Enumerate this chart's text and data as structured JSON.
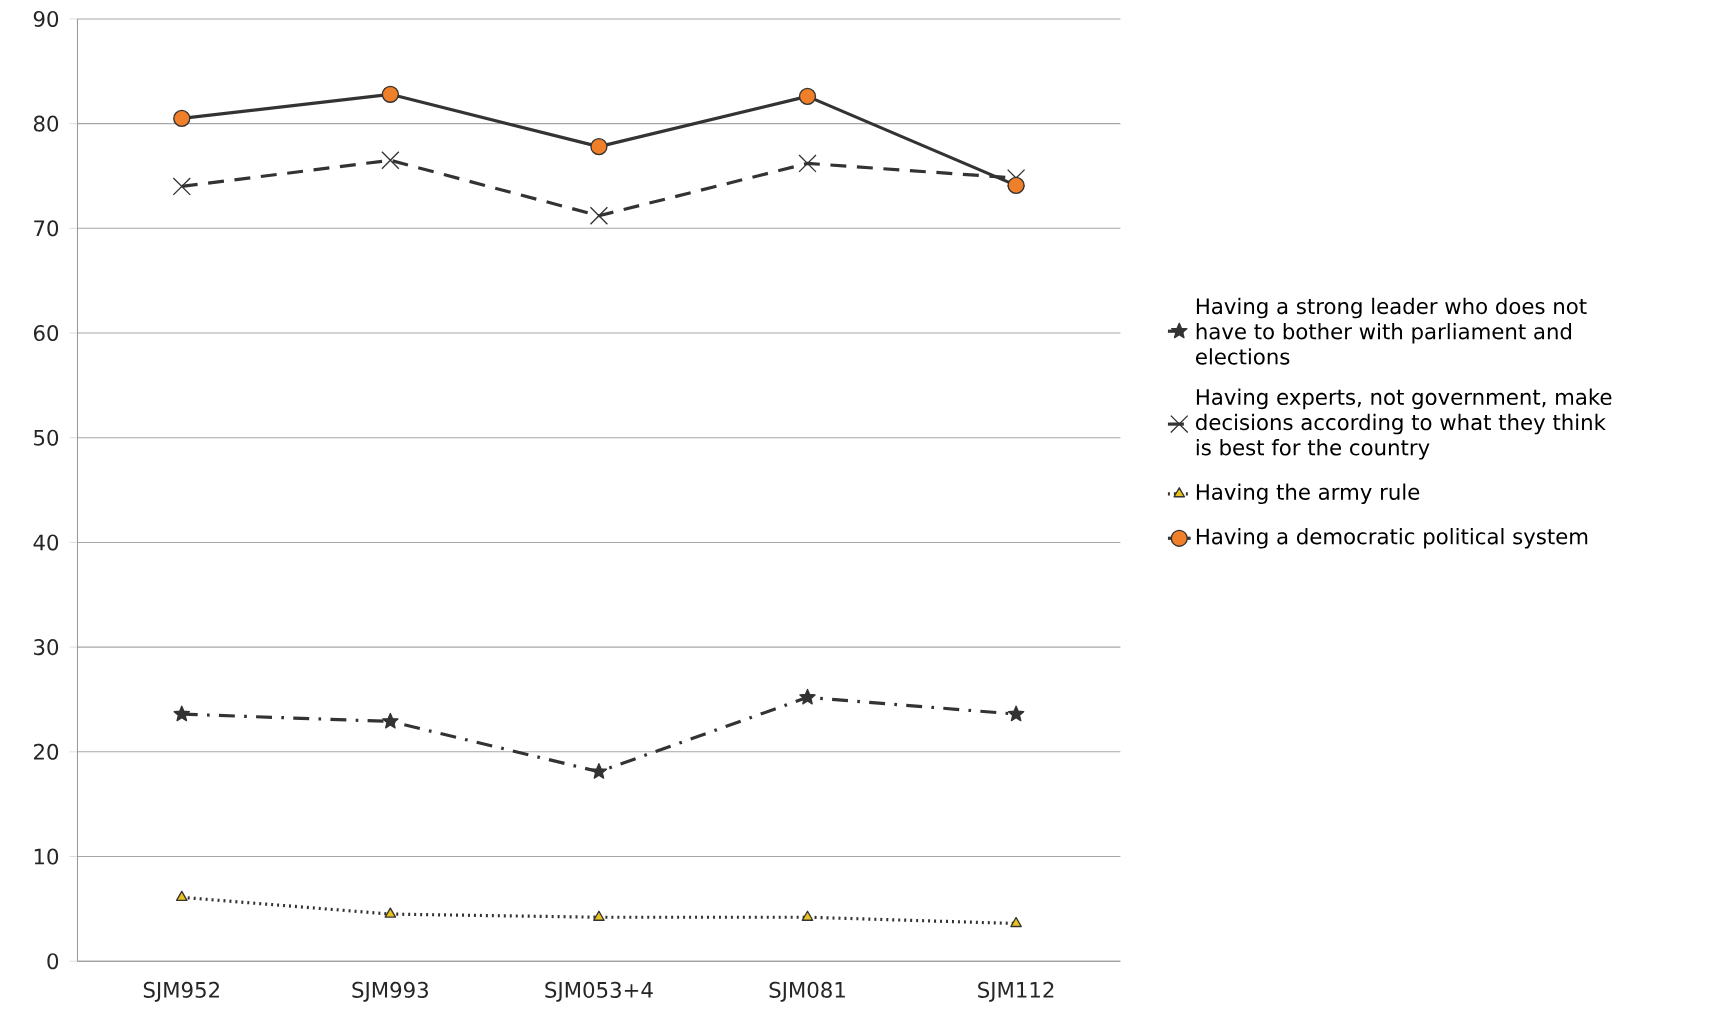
{
  "chart_data": {
    "type": "line",
    "categories": [
      "SJM952",
      "SJM993",
      "SJM053+4",
      "SJM081",
      "SJM112"
    ],
    "ylim": [
      0,
      90
    ],
    "yticks": [
      0,
      10,
      20,
      30,
      40,
      50,
      60,
      70,
      80,
      90
    ],
    "grid": "y",
    "legend": "right",
    "series": [
      {
        "name": "Having a strong leader who does not have to bother with parliament and elections",
        "color": "#333333",
        "marker": "star",
        "line_style": "dashdot",
        "values": [
          23.6,
          22.9,
          18.1,
          25.2,
          23.6
        ]
      },
      {
        "name": "Having experts, not government, make decisions according to what they think is best for the country",
        "color": "#333333",
        "marker": "cross",
        "line_style": "dashed",
        "values": [
          74.0,
          76.5,
          71.2,
          76.2,
          74.8
        ]
      },
      {
        "name": "Having the army rule",
        "color": "#e8c21f",
        "marker": "triangle",
        "line_style": "dotted",
        "values": [
          6.1,
          4.5,
          4.2,
          4.2,
          3.6
        ]
      },
      {
        "name": "Having a democratic political system",
        "color": "#f07f2a",
        "marker": "circle",
        "line_style": "solid",
        "values": [
          80.5,
          82.8,
          77.8,
          82.6,
          74.1
        ]
      }
    ]
  }
}
